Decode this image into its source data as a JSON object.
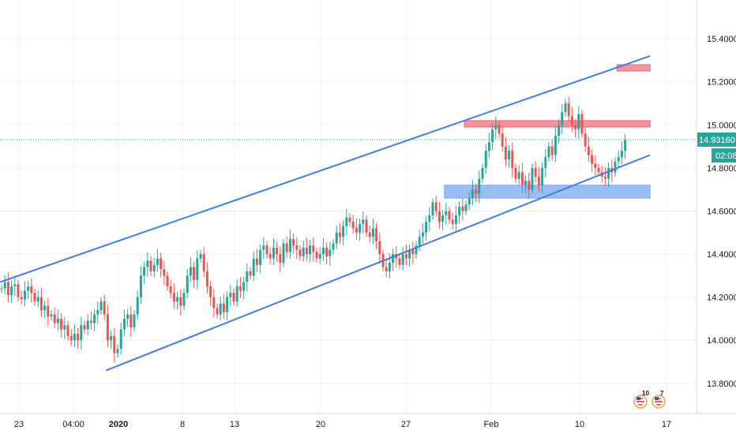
{
  "chart_data": {
    "type": "candlestick",
    "instrument_note": "",
    "y_axis": {
      "position": "right",
      "ticks": [
        15.4,
        15.2,
        15.0,
        14.8,
        14.6,
        14.4,
        14.2,
        14.0,
        13.8
      ],
      "tick_labels": [
        "15.40000",
        "15.20000",
        "15.00000",
        "14.80000",
        "14.60000",
        "14.40000",
        "14.20000",
        "14.00000",
        "13.80000"
      ],
      "range": [
        13.66,
        15.58
      ]
    },
    "x_axis": {
      "labels": [
        {
          "text": "23",
          "bold": false
        },
        {
          "text": "04:00",
          "bold": false
        },
        {
          "text": "2020",
          "bold": true
        },
        {
          "text": "8",
          "bold": false
        },
        {
          "text": "13",
          "bold": false
        },
        {
          "text": "20",
          "bold": false
        },
        {
          "text": "27",
          "bold": false
        },
        {
          "text": "Feb",
          "bold": false
        },
        {
          "text": "10",
          "bold": false
        },
        {
          "text": "17",
          "bold": false
        }
      ]
    },
    "grid": true,
    "current_price": {
      "value": 14.9316,
      "label": "14.93160",
      "countdown": "02:08",
      "color": "#26a69a"
    },
    "candles_close": [
      14.24,
      14.27,
      14.21,
      14.25,
      14.26,
      14.2,
      14.19,
      14.23,
      14.25,
      14.22,
      14.18,
      14.2,
      14.14,
      14.16,
      14.11,
      14.12,
      14.08,
      14.1,
      14.05,
      14.07,
      14.02,
      14.0,
      14.03,
      14.0,
      14.07,
      14.05,
      14.09,
      14.08,
      14.12,
      14.14,
      14.18,
      14.12,
      14.0,
      14.02,
      13.94,
      13.96,
      14.05,
      14.1,
      14.12,
      14.06,
      14.12,
      14.2,
      14.3,
      14.34,
      14.37,
      14.32,
      14.35,
      14.38,
      14.33,
      14.3,
      14.25,
      14.22,
      14.18,
      14.2,
      14.16,
      14.22,
      14.3,
      14.34,
      14.28,
      14.38,
      14.4,
      14.32,
      14.25,
      14.2,
      14.15,
      14.12,
      14.17,
      14.13,
      14.2,
      14.22,
      14.18,
      14.25,
      14.23,
      14.27,
      14.32,
      14.3,
      14.38,
      14.35,
      14.42,
      14.44,
      14.4,
      14.38,
      14.43,
      14.4,
      14.36,
      14.45,
      14.41,
      14.47,
      14.44,
      14.42,
      14.39,
      14.43,
      14.4,
      14.44,
      14.41,
      14.38,
      14.4,
      14.43,
      14.39,
      14.42,
      14.45,
      14.5,
      14.48,
      14.53,
      14.57,
      14.55,
      14.52,
      14.5,
      14.54,
      14.56,
      14.5,
      14.48,
      14.52,
      14.46,
      14.4,
      14.34,
      14.32,
      14.36,
      14.4,
      14.38,
      14.35,
      14.4,
      14.38,
      14.42,
      14.4,
      14.44,
      14.48,
      14.5,
      14.55,
      14.58,
      14.64,
      14.6,
      14.55,
      14.58,
      14.6,
      14.56,
      14.54,
      14.58,
      14.62,
      14.6,
      14.63,
      14.66,
      14.7,
      14.68,
      14.75,
      14.8,
      14.88,
      14.92,
      14.98,
      15.0,
      14.96,
      14.9,
      14.84,
      14.88,
      14.8,
      14.75,
      14.78,
      14.72,
      14.74,
      14.7,
      14.8,
      14.76,
      14.72,
      14.8,
      14.85,
      14.9,
      14.86,
      14.95,
      15.0,
      15.06,
      15.1,
      15.04,
      15.0,
      14.98,
      15.05,
      14.96,
      14.9,
      14.86,
      14.82,
      14.8,
      14.78,
      14.76,
      14.75,
      14.8,
      14.78,
      14.83,
      14.85,
      14.88,
      14.93
    ],
    "channel_lines": [
      {
        "name": "",
        "points": [
          [
            0.0,
            14.27
          ],
          [
            196.0,
            15.32
          ]
        ],
        "color": "#3d7fe0"
      },
      {
        "name": "",
        "points": [
          [
            32.0,
            13.86
          ],
          [
            196.0,
            14.86
          ]
        ],
        "color": "#3d7fe0"
      }
    ],
    "zones": [
      {
        "type": "resistance",
        "x_range": [
          140.0,
          196.0
        ],
        "y_range": [
          14.99,
          15.02
        ],
        "color": "#ee6d7b"
      },
      {
        "type": "resistance",
        "x_range": [
          186.0,
          196.0
        ],
        "y_range": [
          15.25,
          15.28
        ],
        "color": "#ee6d7b"
      },
      {
        "type": "support",
        "x_range": [
          134.0,
          196.0
        ],
        "y_range": [
          14.66,
          14.72
        ],
        "color": "#78a7f0"
      }
    ],
    "colors": {
      "up": "#26a69a",
      "down": "#ef5350",
      "grid": "#eef0f4",
      "axis_text": "#131722"
    },
    "events": [
      {
        "count": "10"
      },
      {
        "count": "7"
      }
    ]
  }
}
